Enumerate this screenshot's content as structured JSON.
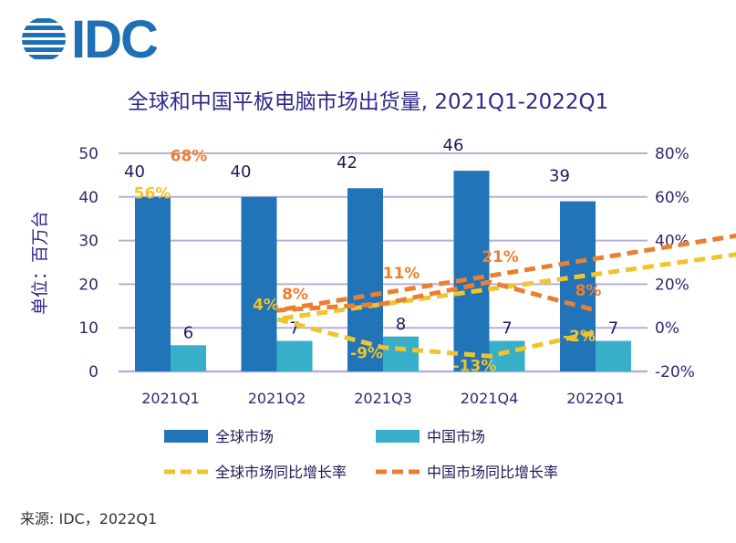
{
  "logo": {
    "text": "IDC",
    "color": "#1f6fb5"
  },
  "title": "全球和中国平板电脑市场出货量, 2021Q1-2022Q1",
  "source": "来源: IDC，2022Q1",
  "chart_data": {
    "type": "bar",
    "categories": [
      "2021Q1",
      "2021Q2",
      "2021Q3",
      "2021Q4",
      "2022Q1"
    ],
    "ylabel": "单位：百万台",
    "ylim": [
      0,
      50
    ],
    "yticks": [
      0,
      10,
      20,
      30,
      40,
      50
    ],
    "y2lim": [
      -20,
      80
    ],
    "y2ticks": [
      "-20%",
      "0%",
      "20%",
      "40%",
      "60%",
      "80%"
    ],
    "grid": true,
    "legend_placement": "bottom",
    "series": [
      {
        "name": "全球市场",
        "type": "bar",
        "axis": "left",
        "color": "#2274b9",
        "values": [
          40,
          40,
          42,
          46,
          39
        ],
        "labels": [
          "40",
          "40",
          "42",
          "46",
          "39"
        ]
      },
      {
        "name": "中国市场",
        "type": "bar",
        "axis": "left",
        "color": "#37afc8",
        "values": [
          6,
          7,
          8,
          7,
          7
        ],
        "labels": [
          "6",
          "7",
          "8",
          "7",
          "7"
        ]
      },
      {
        "name": "全球市场同比增长率",
        "type": "line",
        "style": "dashed",
        "axis": "right",
        "color": "#f0c42c",
        "values": [
          56,
          4,
          -9,
          -13,
          -2
        ],
        "labels": [
          "56%",
          "4%",
          "-9%",
          "-13%",
          "-2%"
        ]
      },
      {
        "name": "中国市场同比增长率",
        "type": "line",
        "style": "dashed",
        "axis": "right",
        "color": "#ea7f32",
        "values": [
          68,
          8,
          11,
          21,
          8
        ],
        "labels": [
          "68%",
          "8%",
          "11%",
          "21%",
          "8%"
        ]
      }
    ]
  }
}
